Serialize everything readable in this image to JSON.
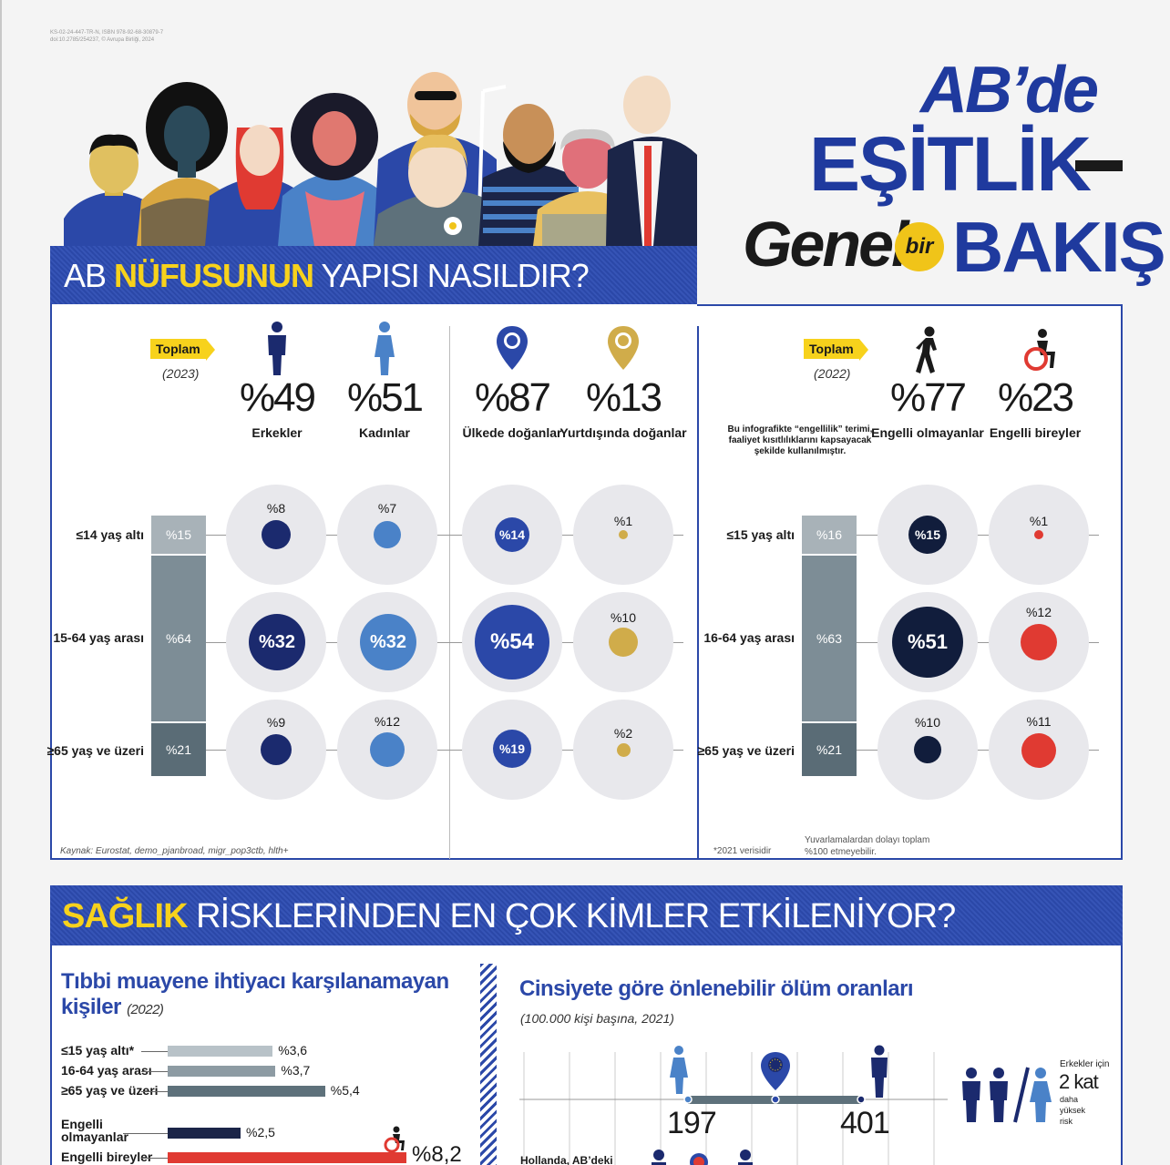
{
  "meta": {
    "isbn_line1": "KS-02-24-447-TR-N, ISBN 978-92-68-30879-7",
    "isbn_line2": "doi:10.2785/254237, © Avrupa Birliği, 2024"
  },
  "title": {
    "line1": "AB’de",
    "line2": "EŞİTLİK",
    "line3a": "Genel",
    "line3b": "bir",
    "line3c": "BAKIŞ"
  },
  "section1": {
    "banner_a": "AB ",
    "banner_b": "NÜFUSUNUN",
    "banner_c": " YAPISI NASILDIR?",
    "left": {
      "tag": "Toplam",
      "year": "(2023)",
      "groups": [
        {
          "pct": "%49",
          "label": "Erkekler",
          "icon": "man-icon"
        },
        {
          "pct": "%51",
          "label": "Kadınlar",
          "icon": "woman-icon"
        },
        {
          "pct": "%87",
          "label": "Ülkede doğanlar",
          "icon": "location-pin-icon"
        },
        {
          "pct": "%13",
          "label": "Yurtdışında doğanlar",
          "icon": "location-pin-icon"
        }
      ],
      "rows": [
        {
          "label": "≤14 yaş altı",
          "total": "%15",
          "vals": [
            "%8",
            "%7",
            "%14",
            "%1"
          ]
        },
        {
          "label": "15-64 yaş arası",
          "total": "%64",
          "vals": [
            "%32",
            "%32",
            "%54",
            "%10"
          ]
        },
        {
          "label": "≥65 yaş ve üzeri",
          "total": "%21",
          "vals": [
            "%9",
            "%12",
            "%19",
            "%2"
          ]
        }
      ],
      "source": "Kaynak: Eurostat, demo_pjanbroad, migr_pop3ctb, hlth+"
    },
    "right": {
      "tag": "Toplam",
      "year": "(2022)",
      "note": "Bu infografikte “engellilik” terimi, faaliyet kısıtlılıklarını kapsayacak şekilde kullanılmıştır.",
      "groups": [
        {
          "pct": "%77",
          "label": "Engelli olmayanlar",
          "icon": "walking-person-icon"
        },
        {
          "pct": "%23",
          "label": "Engelli bireyler",
          "icon": "wheelchair-icon"
        }
      ],
      "rows": [
        {
          "label": "≤15 yaş altı",
          "total": "%16",
          "vals": [
            "%15",
            "%1"
          ]
        },
        {
          "label": "16-64 yaş arası",
          "total": "%63",
          "vals": [
            "%51",
            "%12"
          ]
        },
        {
          "label": "≥65 yaş ve üzeri",
          "total": "%21",
          "vals": [
            "%10",
            "%11"
          ]
        }
      ],
      "footnote": "*2021 verisidir",
      "rounding": "Yuvarlamalardan dolayı toplam\n%100 etmeyebilir."
    }
  },
  "section2": {
    "banner_a": "SAĞLIK",
    "banner_b": " RİSKLERİNDEN EN ÇOK KİMLER ETKİLENİYOR?",
    "left": {
      "title_a": "Tıbbi muayene ihtiyacı karşılanamayan",
      "title_b": "kişiler",
      "year": "(2022)",
      "bars": [
        {
          "label": "≤15 yaş altı*",
          "value": "%3,6",
          "num": 3.6,
          "color": "#b8c2c8"
        },
        {
          "label": "16-64 yaş arası",
          "value": "%3,7",
          "num": 3.7,
          "color": "#8d9ba3"
        },
        {
          "label": "≥65 yaş ve üzeri",
          "value": "%5,4",
          "num": 5.4,
          "color": "#5e717b"
        },
        {
          "label": "Engelli olmayanlar",
          "value": "%2,5",
          "num": 2.5,
          "color": "#1b2548"
        },
        {
          "label": "Engelli bireyler",
          "value": "%8,2",
          "num": 8.2,
          "color": "#e03a32"
        }
      ]
    },
    "right": {
      "title": "Cinsiyete göre önlenebilir ölüm oranları",
      "subtitle": "(100.000 kişi başına, 2021)",
      "women": "197",
      "men": "401",
      "side_a": "Erkekler için",
      "side_b": "2 kat",
      "side_c": "daha\nyüksek\nrisk",
      "bottom_label": "Hollanda, AB’deki"
    }
  }
}
